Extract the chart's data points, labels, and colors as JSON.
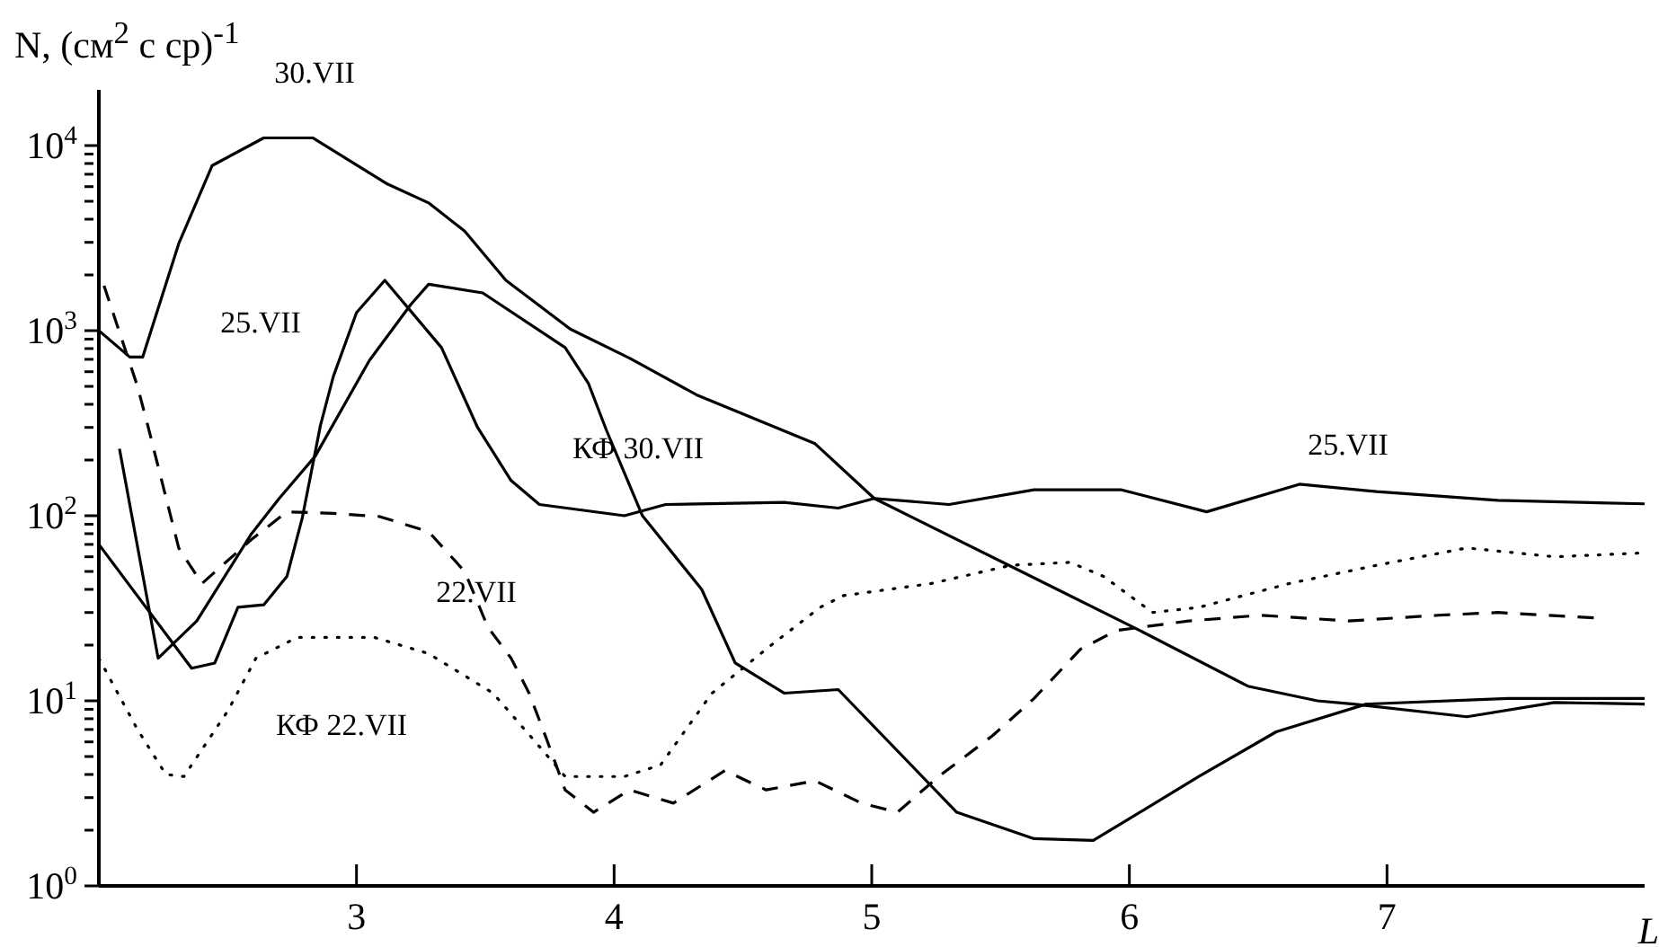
{
  "chart_data": {
    "type": "line",
    "ylabel": "N, (см$^{2}$ с ср)$^{-1}$",
    "xlabel": "L",
    "log": "y",
    "xlim": [
      2,
      8
    ],
    "xticks": [
      3,
      4,
      5,
      6,
      7
    ],
    "ylim": [
      1,
      20000
    ],
    "yticks": [
      {
        "value": 1,
        "label": "10$^{0}$"
      },
      {
        "value": 2,
        "label": null
      },
      {
        "value": 3,
        "label": null
      },
      {
        "value": 4,
        "label": null
      },
      {
        "value": 5,
        "label": null
      },
      {
        "value": 6,
        "label": null
      },
      {
        "value": 7,
        "label": null
      },
      {
        "value": 8,
        "label": null
      },
      {
        "value": 9,
        "label": null
      },
      {
        "value": 10,
        "label": "10$^{1}$"
      },
      {
        "value": 20,
        "label": null
      },
      {
        "value": 30,
        "label": null
      },
      {
        "value": 40,
        "label": null
      },
      {
        "value": 50,
        "label": null
      },
      {
        "value": 60,
        "label": null
      },
      {
        "value": 70,
        "label": null
      },
      {
        "value": 80,
        "label": null
      },
      {
        "value": 90,
        "label": null
      },
      {
        "value": 100,
        "label": "10$^{2}$"
      },
      {
        "value": 200,
        "label": null
      },
      {
        "value": 300,
        "label": null
      },
      {
        "value": 400,
        "label": null
      },
      {
        "value": 500,
        "label": null
      },
      {
        "value": 600,
        "label": null
      },
      {
        "value": 700,
        "label": null
      },
      {
        "value": 800,
        "label": null
      },
      {
        "value": 900,
        "label": null
      },
      {
        "value": 1000,
        "label": "10$^{3}$"
      },
      {
        "value": 2000,
        "label": null
      },
      {
        "value": 3000,
        "label": null
      },
      {
        "value": 4000,
        "label": null
      },
      {
        "value": 5000,
        "label": null
      },
      {
        "value": 6000,
        "label": null
      },
      {
        "value": 7000,
        "label": null
      },
      {
        "value": 8000,
        "label": null
      },
      {
        "value": 9000,
        "label": null
      },
      {
        "value": 10000,
        "label": "10$^{4}$"
      }
    ],
    "series": [
      {
        "color": "#000000",
        "line_style": "solid",
        "x": [
          2.0,
          2.12,
          2.17,
          2.31,
          2.44,
          2.64,
          2.83,
          3.12,
          3.28,
          3.42,
          3.58,
          3.83,
          4.06,
          4.32,
          4.78,
          5.01,
          5.58,
          6.04,
          6.46,
          6.73,
          6.87,
          7.31,
          7.65,
          8.0
        ],
        "values": [
          1000,
          720,
          720,
          2950,
          7800,
          11000,
          11000,
          6200,
          4900,
          3450,
          1870,
          1020,
          710,
          450,
          245,
          124,
          50,
          24,
          12,
          10,
          9.6,
          8.2,
          9.8,
          9.6
        ]
      },
      {
        "color": "#000000",
        "line_style": "solid",
        "x": [
          2.0,
          2.36,
          2.45,
          2.54,
          2.64,
          2.73,
          2.79,
          2.86,
          2.91,
          3.0,
          3.11,
          3.33,
          3.47,
          3.6,
          3.71,
          4.04,
          4.2,
          4.66,
          4.87,
          5.01,
          5.3,
          5.63,
          5.97,
          6.3,
          6.66,
          6.96,
          7.43,
          8.0
        ],
        "values": [
          70,
          15,
          16,
          32,
          33,
          47,
          98,
          307,
          565,
          1250,
          1870,
          810,
          300,
          155,
          115,
          100,
          115,
          118,
          110,
          124,
          115,
          138,
          138,
          105,
          148,
          135,
          121,
          116
        ]
      },
      {
        "color": "#000000",
        "line_style": "solid",
        "x": [
          2.08,
          2.23,
          2.38,
          2.59,
          2.7,
          2.84,
          3.05,
          3.21,
          3.28,
          3.49,
          3.81,
          3.9,
          3.97,
          4.11,
          4.34,
          4.47,
          4.66,
          4.87,
          5.33,
          5.63,
          5.86,
          6.27,
          6.57,
          6.92,
          7.47,
          8.0
        ],
        "values": [
          230,
          17,
          27,
          79,
          124,
          210,
          690,
          1380,
          1780,
          1600,
          810,
          520,
          290,
          100,
          40,
          16,
          11,
          11.5,
          2.5,
          1.8,
          1.76,
          3.9,
          6.8,
          9.6,
          10.3,
          10.3
        ]
      },
      {
        "color": "#000000",
        "line_style": "dashed",
        "x": [
          2.02,
          2.15,
          2.19,
          2.31,
          2.4,
          2.59,
          2.73,
          2.91,
          3.09,
          3.28,
          3.42,
          3.51,
          3.6,
          3.67,
          3.74,
          3.81,
          3.92,
          4.06,
          4.23,
          4.43,
          4.59,
          4.78,
          4.96,
          5.1,
          5.26,
          5.47,
          5.63,
          5.81,
          5.95,
          6.23,
          6.51,
          6.85,
          7.2,
          7.43,
          7.82
        ],
        "values": [
          1750,
          500,
          307,
          67,
          43,
          74,
          105,
          103,
          99,
          82,
          50,
          25,
          17,
          11,
          6.1,
          3.3,
          2.5,
          3.3,
          2.8,
          4.2,
          3.3,
          3.7,
          2.8,
          2.5,
          3.9,
          6.5,
          10.3,
          19,
          24,
          27,
          29,
          27,
          29,
          30,
          28
        ]
      },
      {
        "color": "#000000",
        "line_style": "dotted",
        "x": [
          2.0,
          2.15,
          2.26,
          2.33,
          2.5,
          2.61,
          2.77,
          3.07,
          3.28,
          3.53,
          3.69,
          3.81,
          4.04,
          4.18,
          4.38,
          4.61,
          4.8,
          4.89,
          5.23,
          5.54,
          5.77,
          5.9,
          6.09,
          6.27,
          6.62,
          6.96,
          7.31,
          7.65,
          8.0
        ],
        "values": [
          17,
          7,
          4.0,
          3.9,
          8.8,
          17,
          22,
          22,
          18,
          11,
          6.1,
          3.9,
          3.9,
          4.5,
          11,
          20,
          32,
          37,
          43,
          54,
          56,
          47,
          30,
          32,
          43,
          54,
          67,
          60,
          63
        ]
      }
    ],
    "annotations": [
      "30.VII",
      "25.VII",
      "КФ 30.VII",
      "22.VII",
      "КФ 22.VII",
      "25.VII"
    ]
  }
}
